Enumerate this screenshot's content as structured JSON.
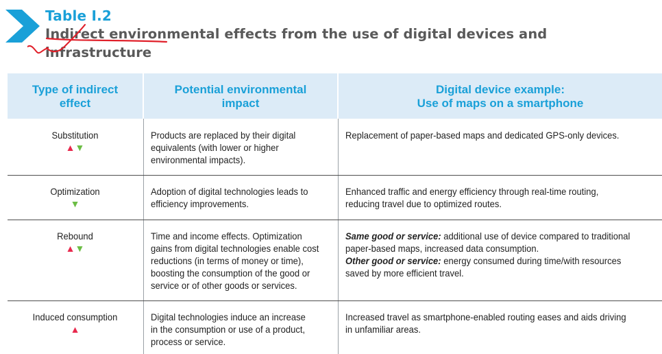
{
  "table_label": "Table I.2",
  "title": {
    "line1": "Indirect environmental effects from the use of digital devices and",
    "line2": "infrastructure"
  },
  "headers": {
    "col1": [
      "Type of indirect",
      "effect"
    ],
    "col2": [
      "Potential environmental",
      "impact"
    ],
    "col3": [
      "Digital device example:",
      "Use of maps on a smartphone"
    ]
  },
  "rows": [
    {
      "type": "Substitution",
      "arrows": [
        "up",
        "down"
      ],
      "impact": [
        "Products are replaced by their digital",
        "equivalents (with lower or higher",
        "environmental impacts)."
      ],
      "example": [
        "Replacement of paper-based maps and dedicated GPS-only devices."
      ]
    },
    {
      "type": "Optimization",
      "arrows": [
        "down"
      ],
      "impact": [
        "Adoption of digital technologies leads to",
        "efficiency improvements."
      ],
      "example": [
        "Enhanced traffic and energy efficiency through real-time routing,",
        "reducing travel due to optimized routes."
      ]
    },
    {
      "type": "Rebound",
      "arrows": [
        "up",
        "down"
      ],
      "impact": [
        "Time and income effects. Optimization",
        "gains from digital technologies enable cost",
        "reductions (in terms of money or time),",
        "boosting the consumption of the good or",
        "service or of other goods or services."
      ],
      "example_same_label": "Same good or service:",
      "example_same_text": [
        " additional use of device compared to traditional",
        "paper-based maps, increased data consumption."
      ],
      "example_other_label": "Other good or service:",
      "example_other_text": [
        " energy consumed during time/with resources",
        "saved by more efficient travel."
      ]
    },
    {
      "type": "Induced consumption",
      "arrows": [
        "up"
      ],
      "impact": [
        "Digital technologies induce an increase",
        "in the consumption or use of a product,",
        "process or service."
      ],
      "example": [
        "Increased travel as smartphone-enabled routing eases and aids driving",
        "in unfamiliar areas."
      ]
    }
  ],
  "colors": {
    "accent": "#1aa0d8",
    "header_bg": "#dcebf7",
    "up_arrow": "#e8294d",
    "down_arrow": "#6cbd45",
    "annotation": "#e0202a"
  },
  "icons": {
    "logo": "chevron-right-icon",
    "increase": "triangle-up-icon",
    "decrease": "triangle-down-icon"
  }
}
